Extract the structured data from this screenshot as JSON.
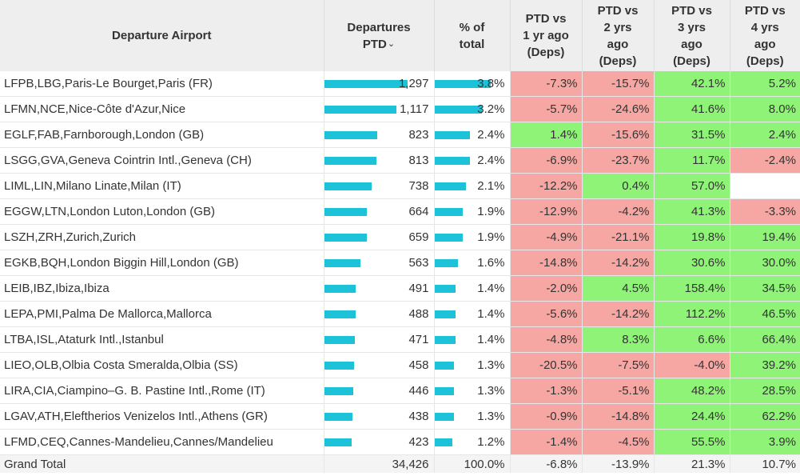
{
  "colors": {
    "bar": "#1bc2d8",
    "negative": "#f7a7a3",
    "positive": "#8ef377",
    "header_bg": "#eeeeee"
  },
  "headers": {
    "airport": "Departure Airport",
    "departures": "Departures PTD",
    "sort_icon": "chevron-down-icon",
    "pct_total": "% of total",
    "ptd1": "PTD vs 1 yr ago (Deps)",
    "ptd2": "PTD vs 2 yrs ago (Deps)",
    "ptd3": "PTD vs 3 yrs ago (Deps)",
    "ptd4": "PTD vs 4 yrs ago (Deps)"
  },
  "rows": [
    {
      "airport": "LFPB,LBG,Paris-Le Bourget,Paris (FR)",
      "departures": "1,297",
      "dep_num": 1297,
      "pct": "3.8%",
      "pct_num": 3.8,
      "ptd1": "-7.3%",
      "ptd2": "-15.7%",
      "ptd3": "42.1%",
      "ptd4": "5.2%"
    },
    {
      "airport": "LFMN,NCE,Nice-Côte d'Azur,Nice",
      "departures": "1,117",
      "dep_num": 1117,
      "pct": "3.2%",
      "pct_num": 3.2,
      "ptd1": "-5.7%",
      "ptd2": "-24.6%",
      "ptd3": "41.6%",
      "ptd4": "8.0%"
    },
    {
      "airport": "EGLF,FAB,Farnborough,London (GB)",
      "departures": "823",
      "dep_num": 823,
      "pct": "2.4%",
      "pct_num": 2.4,
      "ptd1": "1.4%",
      "ptd2": "-15.6%",
      "ptd3": "31.5%",
      "ptd4": "2.4%"
    },
    {
      "airport": "LSGG,GVA,Geneva Cointrin Intl.,Geneva (CH)",
      "departures": "813",
      "dep_num": 813,
      "pct": "2.4%",
      "pct_num": 2.4,
      "ptd1": "-6.9%",
      "ptd2": "-23.7%",
      "ptd3": "11.7%",
      "ptd4": "-2.4%"
    },
    {
      "airport": "LIML,LIN,Milano Linate,Milan (IT)",
      "departures": "738",
      "dep_num": 738,
      "pct": "2.1%",
      "pct_num": 2.1,
      "ptd1": "-12.2%",
      "ptd2": "0.4%",
      "ptd3": "57.0%",
      "ptd4": ""
    },
    {
      "airport": "EGGW,LTN,London Luton,London (GB)",
      "departures": "664",
      "dep_num": 664,
      "pct": "1.9%",
      "pct_num": 1.9,
      "ptd1": "-12.9%",
      "ptd2": "-4.2%",
      "ptd3": "41.3%",
      "ptd4": "-3.3%"
    },
    {
      "airport": "LSZH,ZRH,Zurich,Zurich",
      "departures": "659",
      "dep_num": 659,
      "pct": "1.9%",
      "pct_num": 1.9,
      "ptd1": "-4.9%",
      "ptd2": "-21.1%",
      "ptd3": "19.8%",
      "ptd4": "19.4%"
    },
    {
      "airport": "EGKB,BQH,London Biggin Hill,London (GB)",
      "departures": "563",
      "dep_num": 563,
      "pct": "1.6%",
      "pct_num": 1.6,
      "ptd1": "-14.8%",
      "ptd2": "-14.2%",
      "ptd3": "30.6%",
      "ptd4": "30.0%"
    },
    {
      "airport": "LEIB,IBZ,Ibiza,Ibiza",
      "departures": "491",
      "dep_num": 491,
      "pct": "1.4%",
      "pct_num": 1.4,
      "ptd1": "-2.0%",
      "ptd2": "4.5%",
      "ptd3": "158.4%",
      "ptd4": "34.5%"
    },
    {
      "airport": "LEPA,PMI,Palma De Mallorca,Mallorca",
      "departures": "488",
      "dep_num": 488,
      "pct": "1.4%",
      "pct_num": 1.4,
      "ptd1": "-5.6%",
      "ptd2": "-14.2%",
      "ptd3": "112.2%",
      "ptd4": "46.5%"
    },
    {
      "airport": "LTBA,ISL,Ataturk Intl.,Istanbul",
      "departures": "471",
      "dep_num": 471,
      "pct": "1.4%",
      "pct_num": 1.4,
      "ptd1": "-4.8%",
      "ptd2": "8.3%",
      "ptd3": "6.6%",
      "ptd4": "66.4%"
    },
    {
      "airport": "LIEO,OLB,Olbia Costa Smeralda,Olbia (SS)",
      "departures": "458",
      "dep_num": 458,
      "pct": "1.3%",
      "pct_num": 1.3,
      "ptd1": "-20.5%",
      "ptd2": "-7.5%",
      "ptd3": "-4.0%",
      "ptd4": "39.2%"
    },
    {
      "airport": "LIRA,CIA,Ciampino–G. B. Pastine Intl.,Rome (IT)",
      "departures": "446",
      "dep_num": 446,
      "pct": "1.3%",
      "pct_num": 1.3,
      "ptd1": "-1.3%",
      "ptd2": "-5.1%",
      "ptd3": "48.2%",
      "ptd4": "28.5%"
    },
    {
      "airport": "LGAV,ATH,Eleftherios Venizelos Intl.,Athens (GR)",
      "departures": "438",
      "dep_num": 438,
      "pct": "1.3%",
      "pct_num": 1.3,
      "ptd1": "-0.9%",
      "ptd2": "-14.8%",
      "ptd3": "24.4%",
      "ptd4": "62.2%"
    },
    {
      "airport": "LFMD,CEQ,Cannes-Mandelieu,Cannes/Mandelieu",
      "departures": "423",
      "dep_num": 423,
      "pct": "1.2%",
      "pct_num": 1.2,
      "ptd1": "-1.4%",
      "ptd2": "-4.5%",
      "ptd3": "55.5%",
      "ptd4": "3.9%"
    }
  ],
  "total": {
    "label": "Grand Total",
    "departures": "34,426",
    "pct": "100.0%",
    "ptd1": "-6.8%",
    "ptd2": "-13.9%",
    "ptd3": "21.3%",
    "ptd4": "10.7%"
  }
}
